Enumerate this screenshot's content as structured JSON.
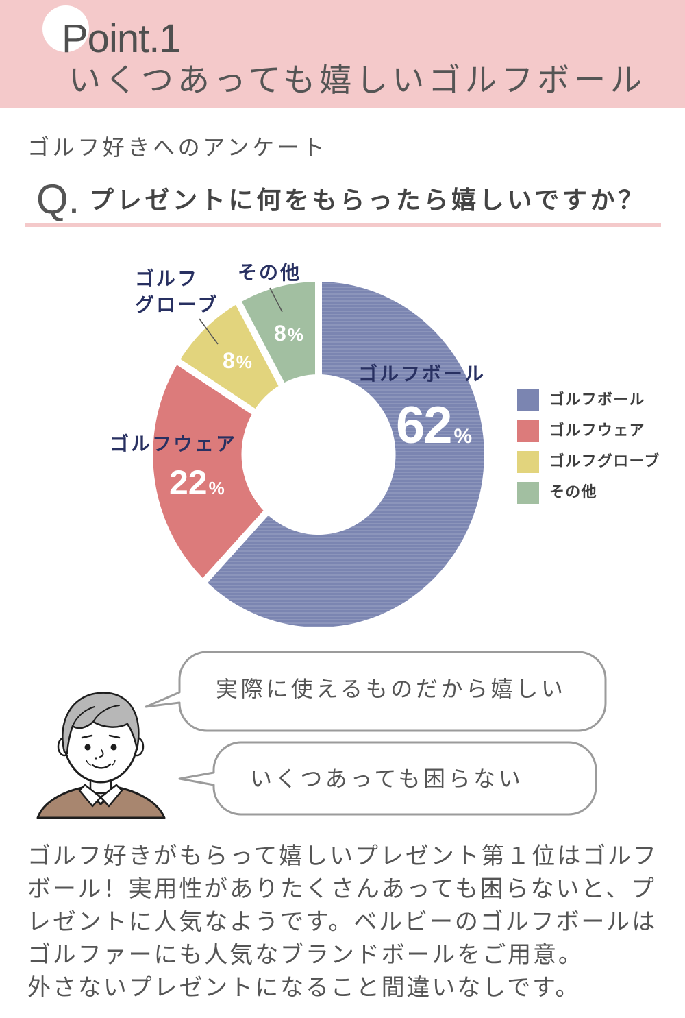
{
  "header": {
    "point_label": "Point.1",
    "title": "いくつあっても嬉しいゴルフボール"
  },
  "survey": {
    "subtitle": "ゴルフ好きへのアンケート",
    "question_prefix": "Q."
  },
  "chart_data": {
    "type": "pie",
    "donut": true,
    "title": "プレゼントに何をもらったら嬉しいですか？",
    "categories": [
      "ゴルフボール",
      "ゴルフウェア",
      "ゴルフグローブ",
      "その他"
    ],
    "values": [
      62,
      22,
      8,
      8
    ],
    "unit": "%",
    "slice_labels": [
      "ゴルフボール",
      "ゴルフウェア",
      "ゴルフ\nグローブ",
      "その他"
    ],
    "colors": [
      "#7b85b1",
      "#dc7b7b",
      "#e2d47d",
      "#a2bfa1"
    ],
    "legend_position": "right"
  },
  "comments": [
    "実際に使えるものだから嬉しい",
    "いくつあっても困らない"
  ],
  "body_lines": [
    "ゴルフ好きがもらって嬉しいプレゼント第１位はゴルフ",
    "ボール！実用性がありたくさんあっても困らないと、プ",
    "レゼントに人気なようです。ベルビーのゴルフボールは",
    "ゴルファーにも人気なブランドボールをご用意。",
    "外さないプレゼントになること間違いなしです。"
  ],
  "theme": {
    "header_bg": "#f4c9ca",
    "accent_line": "#f4c9ca",
    "text": "#555555",
    "label_text": "#283061",
    "bubble_border": "#9b9b9b"
  }
}
